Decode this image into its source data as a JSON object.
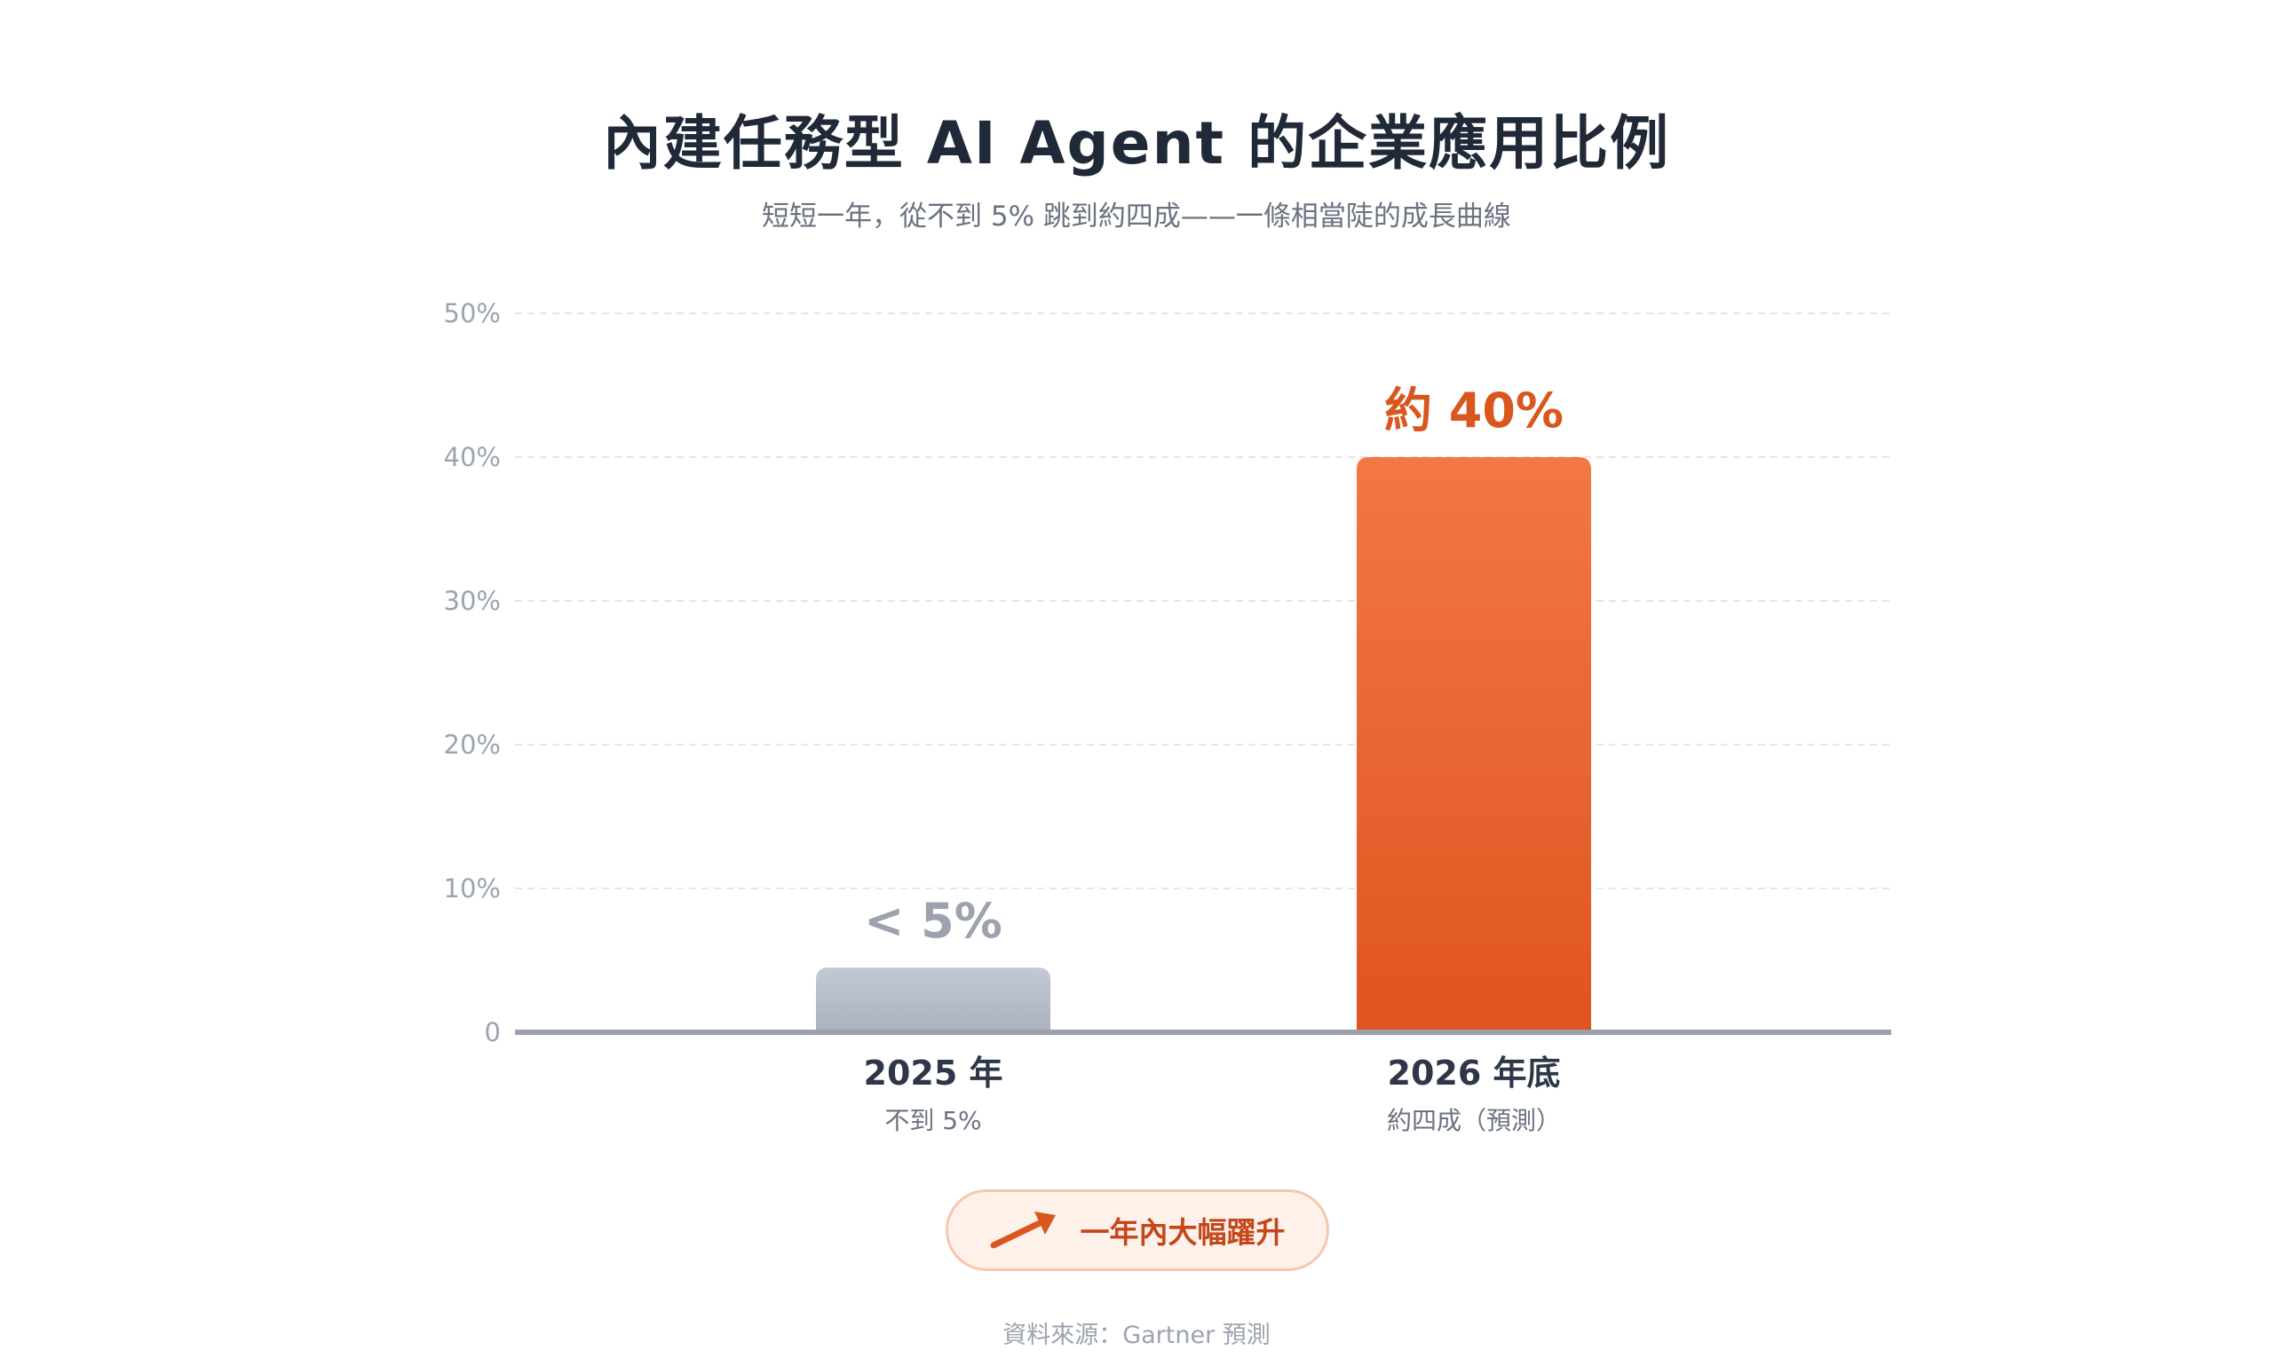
{
  "header": {
    "title": "內建任務型 AI Agent 的企業應用比例",
    "subtitle": "短短一年，從不到 5% 跳到約四成——一條相當陡的成長曲線"
  },
  "chart_data": {
    "type": "bar",
    "categories": [
      "2025 年",
      "2026 年底"
    ],
    "category_notes": [
      "不到 5%",
      "約四成（預測）"
    ],
    "values": [
      4.5,
      40
    ],
    "value_labels": [
      "< 5%",
      "約 40%"
    ],
    "bar_colors": [
      [
        "#c3c9d4",
        "#aab1bf"
      ],
      [
        "#f27844",
        "#df5420"
      ]
    ],
    "value_label_colors": [
      "#9ca3af",
      "#d9571f"
    ],
    "ylim": [
      0,
      50
    ],
    "yticks": [
      0,
      10,
      20,
      30,
      40,
      50
    ],
    "ytick_labels": [
      "0",
      "10%",
      "20%",
      "30%",
      "40%",
      "50%"
    ],
    "grid": true,
    "title": "內建任務型 AI Agent 的企業應用比例",
    "xlabel": "",
    "ylabel": ""
  },
  "callout": {
    "icon": "trend-up-arrow-icon",
    "text": "一年內大幅躍升",
    "accent_color": "#d9571f"
  },
  "source": "資料來源：Gartner 預測"
}
